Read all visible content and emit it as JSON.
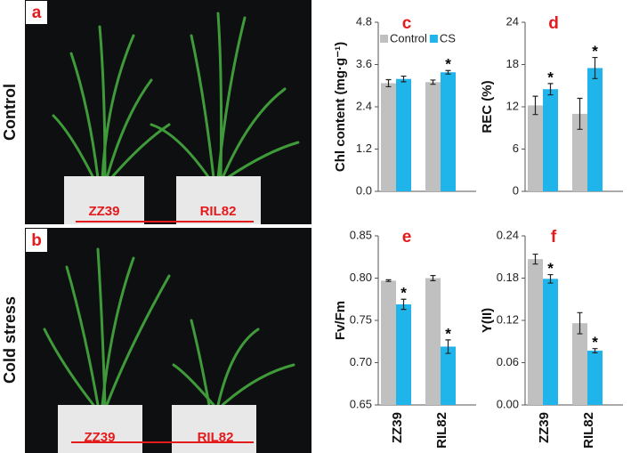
{
  "photos": [
    {
      "panel": "a",
      "condition": "Control",
      "labels": [
        "ZZ39",
        "RIL82"
      ]
    },
    {
      "panel": "b",
      "condition": "Cold stress",
      "labels": [
        "ZZ39",
        "RIL82"
      ]
    }
  ],
  "chart_data": [
    {
      "type": "bar",
      "panel": "c",
      "y_label": "Chl content (mg·g⁻¹)",
      "categories": [
        null,
        null
      ],
      "series": [
        {
          "name": "Control",
          "color": "#c0c0c0",
          "values": [
            3.07,
            3.1
          ],
          "errors": [
            0.1,
            0.06
          ]
        },
        {
          "name": "CS",
          "color": "#1fb4ea",
          "values": [
            3.19,
            3.38
          ],
          "errors": [
            0.08,
            0.05
          ],
          "sig": [
            null,
            "*"
          ]
        }
      ],
      "ylim": [
        0,
        4.8
      ],
      "yticks": [
        {
          "value": 0,
          "label": "0.0"
        },
        1.2,
        2.4,
        3.6,
        4.8
      ],
      "legend": "top-left"
    },
    {
      "type": "bar",
      "panel": "d",
      "y_label": "REC (%)",
      "categories": [
        null,
        null
      ],
      "series": [
        {
          "color": "#c0c0c0",
          "values": [
            12.2,
            11
          ],
          "errors": [
            1.3,
            2.2
          ]
        },
        {
          "color": "#1fb4ea",
          "values": [
            14.5,
            17.5
          ],
          "errors": [
            0.8,
            1.5
          ],
          "sig": [
            "*",
            "*"
          ]
        }
      ],
      "ylim": [
        0,
        24
      ],
      "yticks": [
        0,
        6,
        12,
        18,
        24
      ]
    },
    {
      "type": "bar",
      "panel": "e",
      "y_label": "Fv/Fm",
      "categories": [
        "ZZ39",
        "RIL82"
      ],
      "series": [
        {
          "color": "#c0c0c0",
          "values": [
            0.797,
            0.8
          ],
          "errors": [
            0.001,
            0.003
          ]
        },
        {
          "color": "#1fb4ea",
          "values": [
            0.769,
            0.719
          ],
          "errors": [
            0.006,
            0.008
          ],
          "sig": [
            "*",
            "*"
          ]
        }
      ],
      "ylim": [
        0.65,
        0.85
      ],
      "yticks": [
        0.65,
        {
          "value": 0.7,
          "label": "0.70"
        },
        0.75,
        {
          "value": 0.8,
          "label": "0.80"
        },
        0.85
      ]
    },
    {
      "type": "bar",
      "panel": "f",
      "y_label": "Y(II)",
      "categories": [
        "ZZ39",
        "RIL82"
      ],
      "series": [
        {
          "color": "#c0c0c0",
          "values": [
            0.207,
            0.116
          ],
          "errors": [
            0.007,
            0.015
          ]
        },
        {
          "color": "#1fb4ea",
          "values": [
            0.179,
            0.077
          ],
          "errors": [
            0.006,
            0.003
          ],
          "sig": [
            "*",
            "*"
          ]
        }
      ],
      "ylim": [
        0,
        0.24
      ],
      "yticks": [
        {
          "value": 0,
          "label": "0.00"
        },
        0.06,
        0.12,
        0.18,
        0.24
      ]
    }
  ]
}
